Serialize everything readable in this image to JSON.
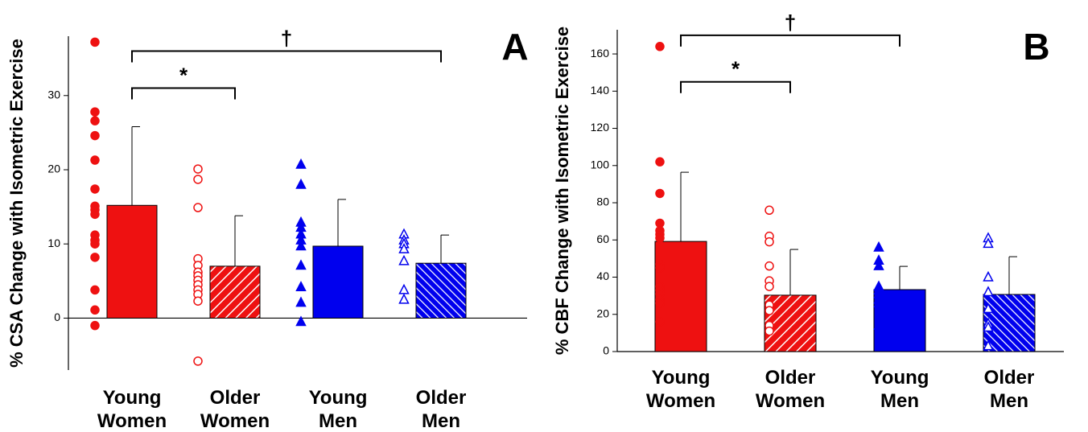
{
  "chart_data": [
    {
      "type": "bar",
      "label": "A",
      "ylabel": "% CSA Change with Isometric Exercise",
      "categories": [
        "Young Women",
        "Older Women",
        "Young Men",
        "Older Men"
      ],
      "values": [
        15.2,
        7.0,
        9.7,
        7.4
      ],
      "errors": [
        10.6,
        6.8,
        6.3,
        3.8
      ],
      "colors": [
        "#ee1111",
        "#ee1111",
        "#0000ee",
        "#0000ee"
      ],
      "hatched": [
        false,
        true,
        false,
        true
      ],
      "markers": [
        "circle",
        "circle",
        "triangle",
        "triangle"
      ],
      "filled": [
        true,
        false,
        true,
        false
      ],
      "points": [
        [
          37.2,
          27.8,
          26.6,
          24.6,
          21.3,
          17.4,
          15.1,
          14.6,
          14.0,
          11.2,
          10.5,
          10.0,
          8.2,
          3.8,
          1.1,
          -1.0
        ],
        [
          20.1,
          18.7,
          14.9,
          8.0,
          7.1,
          6.2,
          5.7,
          5.1,
          4.5,
          3.8,
          3.2,
          2.3,
          -5.8
        ],
        [
          20.7,
          18.0,
          12.9,
          12.2,
          11.3,
          10.5,
          9.7,
          7.1,
          4.2,
          2.1,
          -0.5
        ],
        [
          11.3,
          10.5,
          10.0,
          9.3,
          7.7,
          3.8,
          2.5
        ]
      ],
      "ylim": [
        -7,
        38
      ],
      "yticks": [
        0,
        10,
        20,
        30
      ],
      "annotations": [
        {
          "text": "*",
          "from": 0,
          "to": 1,
          "y": 31
        },
        {
          "text": "†",
          "from": 0,
          "to": 3,
          "y": 36
        }
      ]
    },
    {
      "type": "bar",
      "label": "B",
      "ylabel": "% CBF Change with Isometric Exercise",
      "categories": [
        "Young Women",
        "Older Women",
        "Young Men",
        "Older Men"
      ],
      "values": [
        59.2,
        30.3,
        33.3,
        30.7
      ],
      "errors": [
        37.2,
        24.6,
        12.5,
        20.3
      ],
      "colors": [
        "#ee1111",
        "#ee1111",
        "#0000ee",
        "#0000ee"
      ],
      "hatched": [
        false,
        true,
        false,
        true
      ],
      "markers": [
        "circle",
        "circle",
        "triangle",
        "triangle"
      ],
      "filled": [
        true,
        false,
        true,
        false
      ],
      "points": [
        [
          164,
          102,
          85,
          69,
          65,
          63,
          61,
          47,
          45,
          35,
          33,
          31,
          28,
          26,
          16
        ],
        [
          76,
          62,
          59,
          46,
          38,
          35,
          25,
          22,
          14,
          11
        ],
        [
          56,
          49,
          46,
          35,
          33,
          31,
          28,
          26,
          14
        ],
        [
          61,
          58,
          40,
          32,
          23,
          15,
          13,
          3
        ]
      ],
      "ylim": [
        0,
        173
      ],
      "yticks": [
        0,
        20,
        40,
        60,
        80,
        100,
        120,
        140,
        160
      ],
      "annotations": [
        {
          "text": "*",
          "from": 0,
          "to": 1,
          "y": 145
        },
        {
          "text": "†",
          "from": 0,
          "to": 2,
          "y": 170
        }
      ]
    }
  ]
}
